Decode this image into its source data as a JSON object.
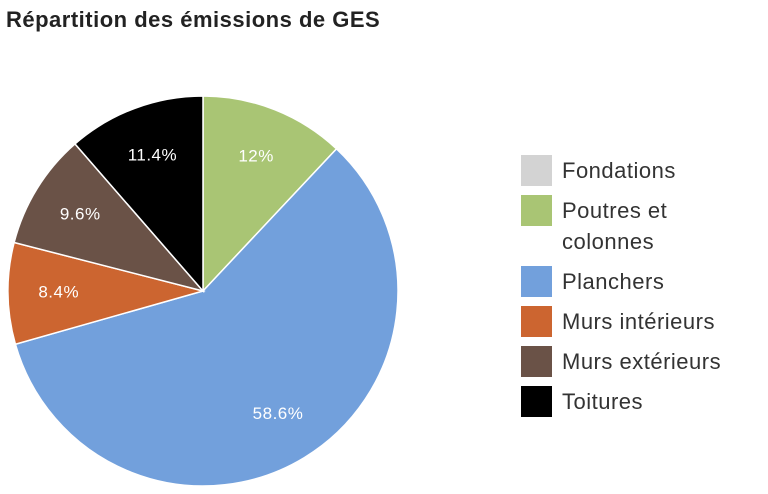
{
  "chart_data": {
    "type": "pie",
    "title": "Répartition des émissions de GES",
    "categories": [
      "Fondations",
      "Poutres et colonnes",
      "Planchers",
      "Murs intérieurs",
      "Murs extérieurs",
      "Toitures"
    ],
    "values": [
      0,
      12,
      58.6,
      8.4,
      9.6,
      11.4
    ],
    "value_labels": [
      null,
      "12%",
      "58.6%",
      "8.4%",
      "9.6%",
      "11.4%"
    ],
    "colors": [
      "#d3d3d3",
      "#a9c574",
      "#72a0dc",
      "#cc6530",
      "#6a5247",
      "#000000"
    ],
    "legend": "right"
  }
}
